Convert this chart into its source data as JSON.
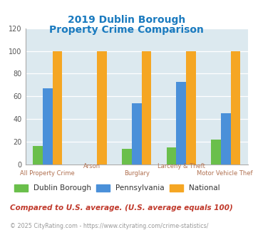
{
  "title_line1": "2019 Dublin Borough",
  "title_line2": "Property Crime Comparison",
  "title_color": "#1a7abf",
  "categories": [
    "All Property Crime",
    "Arson",
    "Burglary",
    "Larceny & Theft",
    "Motor Vehicle Theft"
  ],
  "dublin": [
    16,
    0,
    14,
    15,
    22
  ],
  "pennsylvania": [
    67,
    0,
    54,
    73,
    45
  ],
  "national": [
    100,
    100,
    100,
    100,
    100
  ],
  "dublin_color": "#6abf4b",
  "pennsylvania_color": "#4a90d9",
  "national_color": "#f5a623",
  "ylim": [
    0,
    120
  ],
  "yticks": [
    0,
    20,
    40,
    60,
    80,
    100,
    120
  ],
  "bg_color": "#dce9ef",
  "legend_labels": [
    "Dublin Borough",
    "Pennsylvania",
    "National"
  ],
  "footnote1": "Compared to U.S. average. (U.S. average equals 100)",
  "footnote2": "© 2025 CityRating.com - https://www.cityrating.com/crime-statistics/",
  "footnote1_color": "#c0392b",
  "footnote2_color": "#999999",
  "xlabel_color": "#b07050",
  "bar_width": 0.22
}
